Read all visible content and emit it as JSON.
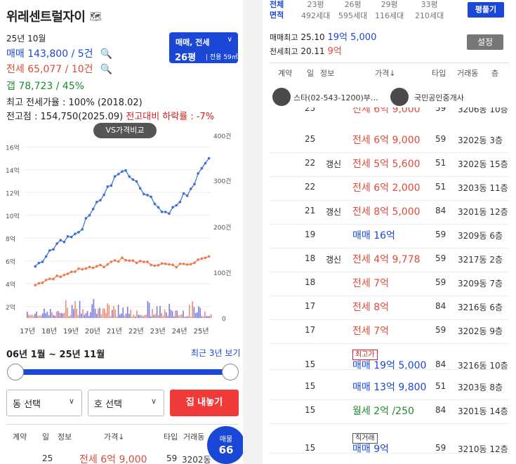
{
  "title": "위레센트럴자이",
  "date": "25년 10월",
  "sale": "매매 143,800 / 5건",
  "jeonse": "전세 65,077 / 10건",
  "gap": "갭  78,723 / 45%",
  "max_ratio": "최고 전세가율 : 100% (2018.02)",
  "peak_prefix": "전고점 : 154,750(2025.09)",
  "peak_drop": "전고대비 하락률 : -7%",
  "type_box": {
    "line1": "매매, 전세",
    "line2": "26평",
    "line3": "전용 59㎡"
  },
  "vs_button": "VS가격비교",
  "chart_data": {
    "type": "line",
    "x": [
      "17년",
      "18년",
      "19년",
      "20년",
      "21년",
      "22년",
      "23년",
      "24년",
      "25년"
    ],
    "y_left_ticks": [
      "2억",
      "4억",
      "6억",
      "8억",
      "10억",
      "12억",
      "14억",
      "16억"
    ],
    "y_right_ticks": [
      "0",
      "100건",
      "200건",
      "300건",
      "400건"
    ],
    "series": [
      {
        "name": "매매",
        "values": [
          5.5,
          7.5,
          8.5,
          11.5,
          14.0,
          12.0,
          10.0,
          12.0,
          15.0
        ]
      },
      {
        "name": "전세",
        "values": [
          4.0,
          4.6,
          5.2,
          5.5,
          6.2,
          5.8,
          5.6,
          5.6,
          6.4
        ]
      }
    ],
    "colors": {
      "sale": "#3a6fd8",
      "jeonse": "#f07a4a",
      "bars": [
        "#e87050",
        "#5a5ad8"
      ]
    }
  },
  "range": "06년 1월 ~ 25년 11월",
  "recent": "최근 3년 보기",
  "dong_select": "동 선택",
  "ho_select": "호 선택",
  "house_btn": "집 내놓기",
  "table_header": {
    "c1": "계약",
    "c2": "일",
    "c3": "정보",
    "c4": "가격↓",
    "c5": "타입",
    "c6": "거래동"
  },
  "bottom_row": {
    "d": "25",
    "price": "전세 6억 9,000",
    "type": "59",
    "dong": "3202동"
  },
  "bubble": {
    "label": "매물",
    "count": "66"
  },
  "right": {
    "tab1a": "전체",
    "tab1b": "면적",
    "tabs": [
      {
        "a": "23평",
        "b": "492세대"
      },
      {
        "a": "26평",
        "b": "595세대"
      },
      {
        "a": "29평",
        "b": "116세대"
      },
      {
        "a": "33평",
        "b": "210세대"
      }
    ],
    "pyeong_btn": "평풀기",
    "max_sale_label": "매매최고",
    "max_sale_date": "25.10",
    "max_sale_price": "19억 5,000",
    "max_jeonse_label": "전세최고",
    "max_jeonse_date": "20.11",
    "max_jeonse_price": "9억",
    "set_btn": "설정",
    "header": {
      "c1": "계약",
      "c2": "일",
      "c3": "정보",
      "c4": "가격↓",
      "c5": "타입",
      "c6": "거래동",
      "c7": "층"
    },
    "agent1": "스타(02-543-1200)부…",
    "agent2": "국민공인중개사",
    "partial_row": {
      "d": "25",
      "price": "전세 6억 9,000",
      "type": "59",
      "dong": "3206동 10층"
    },
    "rows": [
      {
        "d": "25",
        "info": "",
        "tag": "",
        "kind": "jeonse",
        "price": "전세 6억 9,000",
        "type": "59",
        "dong": "3202동 3층"
      },
      {
        "d": "22",
        "info": "갱신",
        "tag": "",
        "kind": "jeonse",
        "price": "전세 5억 5,600",
        "type": "51",
        "dong": "3202동 15층"
      },
      {
        "d": "22",
        "info": "",
        "tag": "",
        "kind": "jeonse",
        "price": "전세 6억 2,000",
        "type": "51",
        "dong": "3203동 11층"
      },
      {
        "d": "21",
        "info": "갱신",
        "tag": "",
        "kind": "jeonse",
        "price": "전세 8억 5,000",
        "type": "84",
        "dong": "3201동 12층"
      },
      {
        "d": "19",
        "info": "",
        "tag": "",
        "kind": "sale",
        "price": "매매 16억",
        "type": "59",
        "dong": "3209동 6층"
      },
      {
        "d": "18",
        "info": "갱신",
        "tag": "",
        "kind": "jeonse",
        "price": "전세 4억 9,778",
        "type": "59",
        "dong": "3217동 2층"
      },
      {
        "d": "18",
        "info": "",
        "tag": "",
        "kind": "jeonse",
        "price": "전세 7억",
        "type": "59",
        "dong": "3209동 7층"
      },
      {
        "d": "17",
        "info": "",
        "tag": "",
        "kind": "jeonse",
        "price": "전세 8억",
        "type": "84",
        "dong": "3216동 6층"
      },
      {
        "d": "17",
        "info": "",
        "tag": "",
        "kind": "jeonse",
        "price": "전세 7억",
        "type": "59",
        "dong": "3202동 9층"
      },
      {
        "d": "15",
        "info": "",
        "tag": "최고가",
        "kind": "sale",
        "price": "매매 19억 5,000",
        "type": "84",
        "dong": "3216동 10층"
      },
      {
        "d": "15",
        "info": "",
        "tag": "",
        "kind": "sale",
        "price": "매매 13억 9,800",
        "type": "51",
        "dong": "3203동 8층"
      },
      {
        "d": "15",
        "info": "",
        "tag": "",
        "kind": "monthly",
        "price": "월세 2억 /250",
        "type": "84",
        "dong": "3201동 14층"
      },
      {
        "d": "15",
        "info": "",
        "tag": "직거래",
        "kind": "sale",
        "price": "매매 9억",
        "type": "59",
        "dong": "3210동 12층"
      }
    ]
  }
}
